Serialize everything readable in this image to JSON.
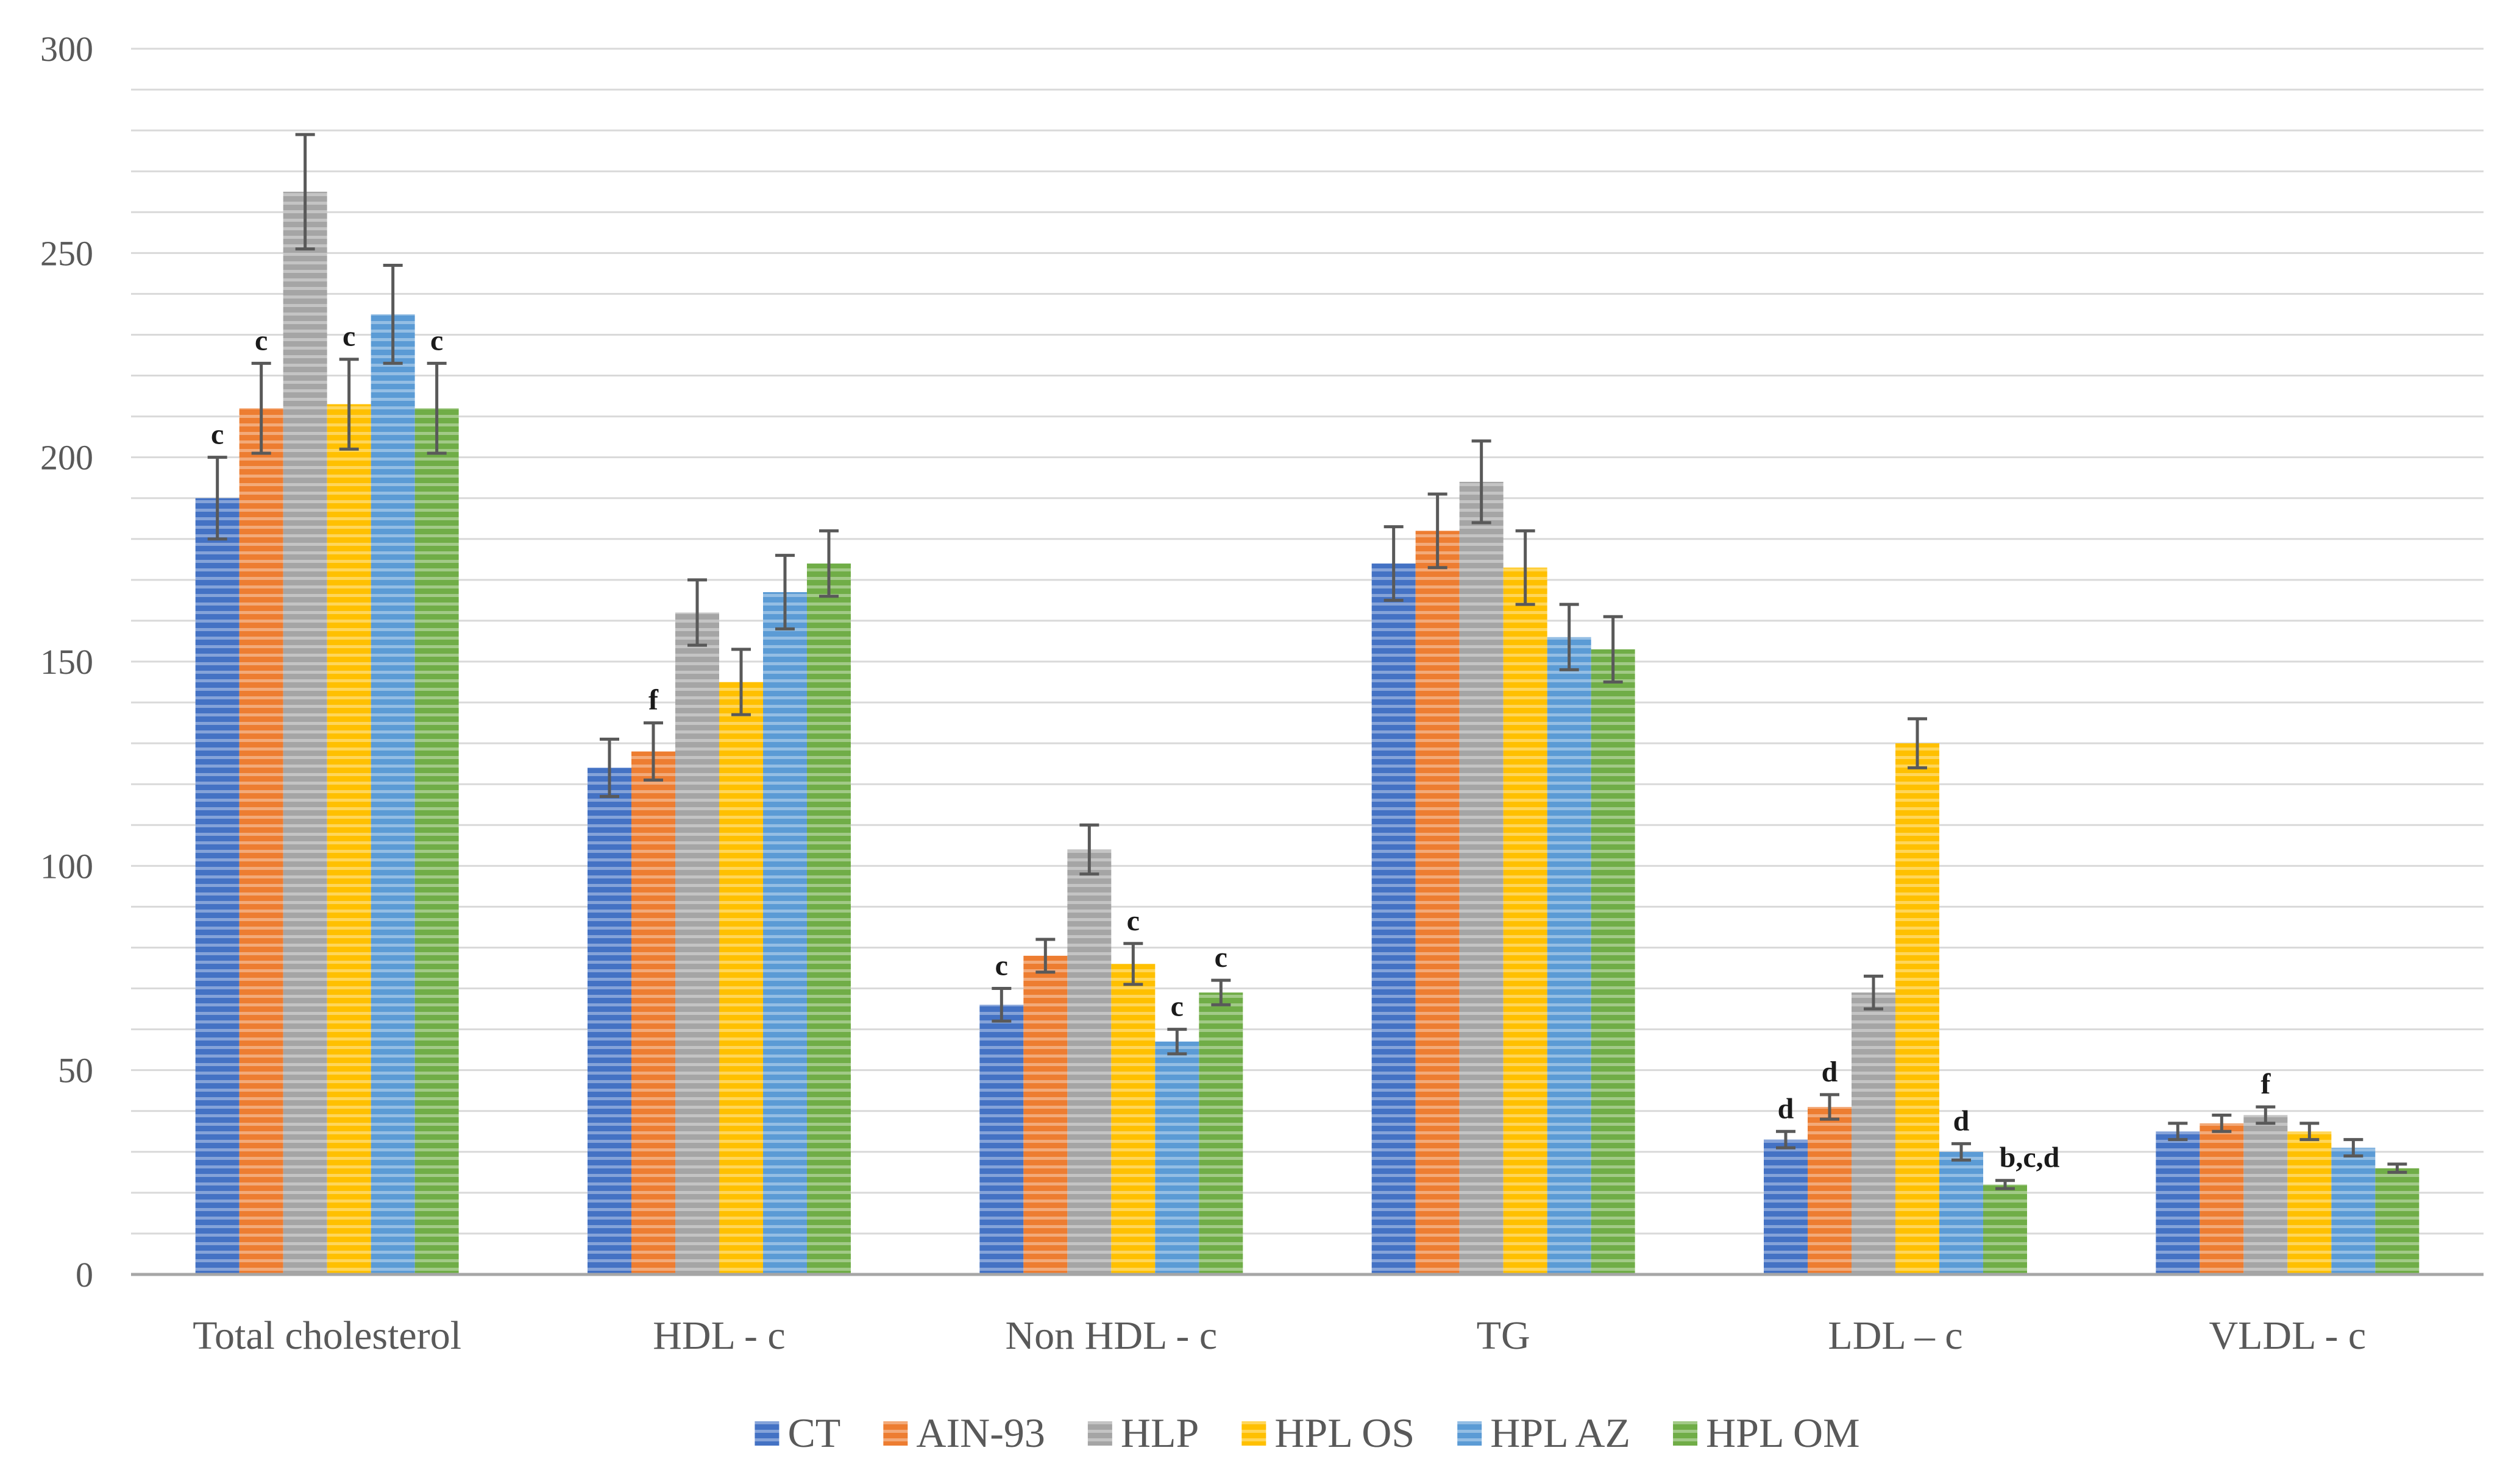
{
  "chart_data": {
    "type": "bar",
    "title": "",
    "xlabel": "",
    "ylabel": "",
    "ylim": [
      0,
      300
    ],
    "y_ticks": [
      0,
      50,
      100,
      150,
      200,
      250,
      300
    ],
    "y_tick_labels": [
      "0",
      "50",
      "100",
      "150",
      "200",
      "250",
      "300"
    ],
    "minor_grid_step": 10,
    "grid": true,
    "legend_position": "bottom",
    "bar_pattern": "horizontal stripes",
    "categories": [
      "Total cholesterol",
      "HDL - c",
      "Non HDL - c",
      "TG",
      "LDL – c",
      "VLDL - c"
    ],
    "series": [
      {
        "name": "CT",
        "color": "#4472c4",
        "values": [
          190,
          124,
          66,
          174,
          33,
          35
        ],
        "errors": [
          10,
          7,
          4,
          9,
          2,
          2
        ],
        "annotations": [
          "c",
          "",
          "c",
          "",
          "d",
          ""
        ]
      },
      {
        "name": "AIN-93",
        "color": "#ed7d31",
        "values": [
          212,
          128,
          78,
          182,
          41,
          37
        ],
        "errors": [
          11,
          7,
          4,
          9,
          3,
          2
        ],
        "annotations": [
          "c",
          "f",
          "",
          "",
          "d",
          ""
        ]
      },
      {
        "name": "HLP",
        "color": "#a5a5a5",
        "values": [
          265,
          162,
          104,
          194,
          69,
          39
        ],
        "errors": [
          14,
          8,
          6,
          10,
          4,
          2
        ],
        "annotations": [
          "",
          "",
          "",
          "",
          "",
          "f"
        ]
      },
      {
        "name": "HPL OS",
        "color": "#ffc000",
        "values": [
          213,
          145,
          76,
          173,
          130,
          35
        ],
        "errors": [
          11,
          8,
          5,
          9,
          6,
          2
        ],
        "annotations": [
          "c",
          "",
          "c",
          "",
          "",
          ""
        ]
      },
      {
        "name": "HPL AZ",
        "color": "#5b9bd5",
        "values": [
          235,
          167,
          57,
          156,
          30,
          31
        ],
        "errors": [
          12,
          9,
          3,
          8,
          2,
          2
        ],
        "annotations": [
          "",
          "",
          "c",
          "",
          "d",
          ""
        ]
      },
      {
        "name": "HPL OM",
        "color": "#70ad47",
        "values": [
          212,
          174,
          69,
          153,
          22,
          26
        ],
        "errors": [
          11,
          8,
          3,
          8,
          1,
          1
        ],
        "annotations": [
          "c",
          "",
          "c",
          "",
          "b,c,d",
          ""
        ]
      }
    ]
  }
}
